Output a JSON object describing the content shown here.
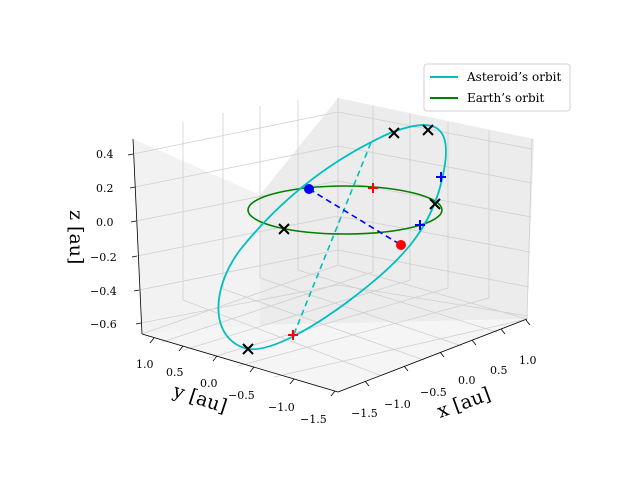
{
  "chart_data": {
    "type": "line",
    "projection": "3d",
    "xlabel": "x [au]",
    "ylabel": "y [au]",
    "zlabel": "z [au]",
    "xlim": [
      -1.5,
      1.0
    ],
    "ylim": [
      -1.5,
      1.0
    ],
    "zlim": [
      -0.6,
      0.4
    ],
    "xticks": [
      "−1.5",
      "−1.0",
      "−0.5",
      "0.0",
      "0.5",
      "1.0"
    ],
    "yticks": [
      "−1.5",
      "−1.0",
      "−0.5",
      "0.0",
      "0.5",
      "1.0"
    ],
    "zticks": [
      "−0.6",
      "−0.4",
      "−0.2",
      "0.0",
      "0.2",
      "0.4"
    ],
    "grid": true,
    "legend_position": "top-right",
    "series": [
      {
        "name": "Asteroid’s orbit",
        "color": "#00bfbf",
        "kind": "ellipse",
        "semi_major_axis": 1.2,
        "eccentricity": 0.3,
        "inclination_deg": 20,
        "focus": [
          0,
          0,
          0
        ]
      },
      {
        "name": "Earth’s orbit",
        "color": "#008000",
        "kind": "circle",
        "radius": 1.0,
        "center": [
          0,
          0,
          0
        ]
      }
    ],
    "markers": [
      {
        "type": "x",
        "color": "#000000",
        "xyz": [
          0.0,
          0.0,
          0.0
        ]
      },
      {
        "type": "x",
        "color": "#000000",
        "xyz": [
          0.1,
          -0.7,
          -0.25
        ]
      },
      {
        "type": "x",
        "color": "#000000",
        "xyz": [
          0.6,
          1.1,
          0.4
        ]
      },
      {
        "type": "x",
        "color": "#000000",
        "xyz": [
          1.1,
          0.5,
          0.36
        ]
      },
      {
        "type": "x",
        "color": "#000000",
        "xyz": [
          0.6,
          -1.2,
          0.0
        ]
      },
      {
        "type": "+",
        "color": "#0000ff",
        "xyz": [
          1.1,
          -0.4,
          0.1
        ]
      },
      {
        "type": "+",
        "color": "#0000ff",
        "xyz": [
          0.3,
          -1.1,
          -0.05
        ]
      },
      {
        "type": "+",
        "color": "#ff0000",
        "xyz": [
          0.4,
          -0.2,
          0.1
        ]
      },
      {
        "type": "+",
        "color": "#ff0000",
        "xyz": [
          -0.5,
          0.2,
          -0.35
        ]
      },
      {
        "type": "dot",
        "color": "#0000ff",
        "xyz": [
          -0.6,
          0.8,
          0.2
        ]
      },
      {
        "type": "dot",
        "color": "#ff0000",
        "xyz": [
          0.5,
          -0.9,
          -0.15
        ]
      }
    ],
    "dashed_lines": [
      {
        "color": "#0000ff",
        "from": [
          -0.6,
          0.8,
          0.2
        ],
        "to": [
          0.5,
          -0.9,
          -0.15
        ]
      },
      {
        "color": "#00bfbf",
        "from": [
          -0.5,
          0.2,
          -0.35
        ],
        "to": [
          0.6,
          1.1,
          0.4
        ]
      }
    ]
  }
}
